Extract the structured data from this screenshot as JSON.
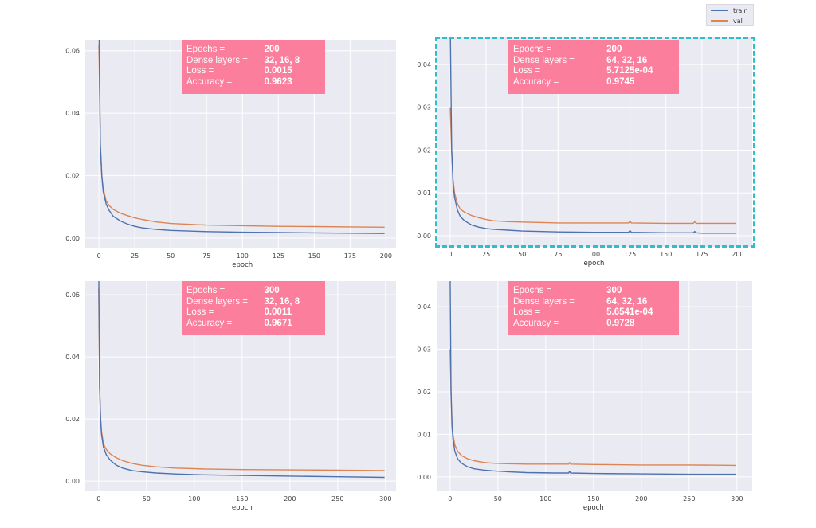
{
  "legend": {
    "train": "train",
    "val": "val"
  },
  "colors": {
    "train": "#4c72b0",
    "val": "#dd8452",
    "plot_bg": "#eaeaf2",
    "grid": "#ffffff",
    "info_bg": "#fb7f9c",
    "highlight": "#2fbfcb"
  },
  "chart_data": [
    {
      "type": "line",
      "title": "",
      "xlabel": "epoch",
      "ylabel": "",
      "xlim": [
        -9.5,
        207
      ],
      "ylim": [
        -0.0033,
        0.0635
      ],
      "xticks": [
        0,
        25,
        50,
        75,
        100,
        125,
        150,
        175,
        200
      ],
      "yticks": [
        0.0,
        0.02,
        0.04,
        0.06
      ],
      "ytick_labels": [
        "0.00",
        "0.02",
        "0.04",
        "0.06"
      ],
      "x": [
        0,
        1,
        2,
        3,
        5,
        7,
        10,
        15,
        20,
        25,
        30,
        40,
        50,
        75,
        100,
        125,
        150,
        175,
        199
      ],
      "series": [
        {
          "name": "train",
          "values": [
            0.07,
            0.03,
            0.02,
            0.015,
            0.011,
            0.009,
            0.007,
            0.0055,
            0.0045,
            0.0038,
            0.0033,
            0.0028,
            0.0025,
            0.0021,
            0.0019,
            0.0018,
            0.0017,
            0.0016,
            0.0015
          ]
        },
        {
          "name": "val",
          "values": [
            0.062,
            0.03,
            0.02,
            0.016,
            0.012,
            0.0105,
            0.0092,
            0.008,
            0.0072,
            0.0065,
            0.006,
            0.0052,
            0.0047,
            0.0042,
            0.004,
            0.0038,
            0.0037,
            0.0036,
            0.0035
          ]
        }
      ],
      "info": {
        "epochs_label": "Epochs =",
        "epochs": "200",
        "layers_label": "Dense layers =",
        "layers": "32, 16, 8",
        "loss_label": "Loss =",
        "loss": "0.0015",
        "acc_label": "Accuracy =",
        "acc": "0.9623"
      }
    },
    {
      "type": "line",
      "title": "",
      "xlabel": "epoch",
      "ylabel": "",
      "xlim": [
        -9.4,
        210
      ],
      "ylim": [
        -0.0026,
        0.0463
      ],
      "xticks": [
        0,
        25,
        50,
        75,
        100,
        125,
        150,
        175,
        200
      ],
      "yticks": [
        0.0,
        0.01,
        0.02,
        0.03,
        0.04
      ],
      "ytick_labels": [
        "0.00",
        "0.01",
        "0.02",
        "0.03",
        "0.04"
      ],
      "x": [
        0,
        1,
        2,
        3,
        5,
        7,
        10,
        15,
        20,
        25,
        30,
        40,
        50,
        75,
        100,
        124,
        125,
        126,
        150,
        169,
        170,
        171,
        175,
        199
      ],
      "series": [
        {
          "name": "train",
          "values": [
            0.05,
            0.02,
            0.012,
            0.009,
            0.006,
            0.0045,
            0.0035,
            0.0025,
            0.002,
            0.0017,
            0.0015,
            0.0013,
            0.0011,
            0.0009,
            0.0008,
            0.0008,
            0.0012,
            0.0008,
            0.0007,
            0.0007,
            0.001,
            0.0007,
            0.0006,
            0.0006
          ]
        },
        {
          "name": "val",
          "values": [
            0.03,
            0.02,
            0.013,
            0.01,
            0.0075,
            0.0062,
            0.0055,
            0.0047,
            0.0042,
            0.0038,
            0.0035,
            0.0033,
            0.0032,
            0.003,
            0.003,
            0.003,
            0.0034,
            0.003,
            0.0029,
            0.0029,
            0.0033,
            0.0029,
            0.0029,
            0.0029
          ]
        }
      ],
      "info": {
        "epochs_label": "Epochs =",
        "epochs": "200",
        "layers_label": "Dense layers =",
        "layers": "64, 32, 16",
        "loss_label": "Loss =",
        "loss": "5.7125e-04",
        "acc_label": "Accuracy =",
        "acc": "0.9745"
      }
    },
    {
      "type": "line",
      "title": "",
      "xlabel": "epoch",
      "ylabel": "",
      "xlim": [
        -14,
        311
      ],
      "ylim": [
        -0.0033,
        0.0644
      ],
      "xticks": [
        0,
        50,
        100,
        150,
        200,
        250,
        300
      ],
      "yticks": [
        0.0,
        0.02,
        0.04,
        0.06
      ],
      "ytick_labels": [
        "0.00",
        "0.02",
        "0.04",
        "0.06"
      ],
      "x": [
        0,
        1,
        2,
        3,
        5,
        8,
        12,
        18,
        25,
        35,
        45,
        60,
        80,
        110,
        150,
        200,
        250,
        299
      ],
      "series": [
        {
          "name": "train",
          "values": [
            0.07,
            0.03,
            0.02,
            0.015,
            0.011,
            0.0085,
            0.0068,
            0.0052,
            0.0042,
            0.0034,
            0.003,
            0.0026,
            0.0023,
            0.002,
            0.0018,
            0.0016,
            0.0014,
            0.0012
          ]
        },
        {
          "name": "val",
          "values": [
            0.062,
            0.03,
            0.02,
            0.016,
            0.012,
            0.0102,
            0.0088,
            0.0076,
            0.0066,
            0.0057,
            0.0051,
            0.0046,
            0.0042,
            0.0039,
            0.0037,
            0.0036,
            0.0035,
            0.0034
          ]
        }
      ],
      "info": {
        "epochs_label": "Epochs =",
        "epochs": "300",
        "layers_label": "Dense layers =",
        "layers": "32, 16, 8",
        "loss_label": "Loss =",
        "loss": "0.0011",
        "acc_label": "Accuracy =",
        "acc": "0.9671"
      }
    },
    {
      "type": "line",
      "title": "",
      "xlabel": "epoch",
      "ylabel": "",
      "xlim": [
        -14,
        316
      ],
      "ylim": [
        -0.0034,
        0.046
      ],
      "xticks": [
        0,
        50,
        100,
        150,
        200,
        250,
        300
      ],
      "yticks": [
        0.0,
        0.01,
        0.02,
        0.03,
        0.04
      ],
      "ytick_labels": [
        "0.00",
        "0.01",
        "0.02",
        "0.03",
        "0.04"
      ],
      "x": [
        0,
        1,
        2,
        3,
        5,
        8,
        12,
        18,
        25,
        35,
        45,
        60,
        80,
        110,
        124,
        125,
        126,
        150,
        200,
        250,
        299
      ],
      "series": [
        {
          "name": "train",
          "values": [
            0.05,
            0.02,
            0.012,
            0.009,
            0.006,
            0.0042,
            0.0032,
            0.0024,
            0.0019,
            0.0016,
            0.0014,
            0.0012,
            0.001,
            0.0009,
            0.0009,
            0.0013,
            0.0009,
            0.0008,
            0.0007,
            0.0006,
            0.0006
          ]
        },
        {
          "name": "val",
          "values": [
            0.03,
            0.02,
            0.013,
            0.01,
            0.0075,
            0.006,
            0.005,
            0.0043,
            0.0038,
            0.0034,
            0.0032,
            0.0031,
            0.003,
            0.003,
            0.003,
            0.0034,
            0.003,
            0.0029,
            0.0028,
            0.0028,
            0.0027
          ]
        }
      ],
      "info": {
        "epochs_label": "Epochs =",
        "epochs": "300",
        "layers_label": "Dense layers =",
        "layers": "64, 32, 16",
        "loss_label": "Loss =",
        "loss": "5.6541e-04",
        "acc_label": "Accuracy =",
        "acc": "0.9728"
      }
    }
  ]
}
